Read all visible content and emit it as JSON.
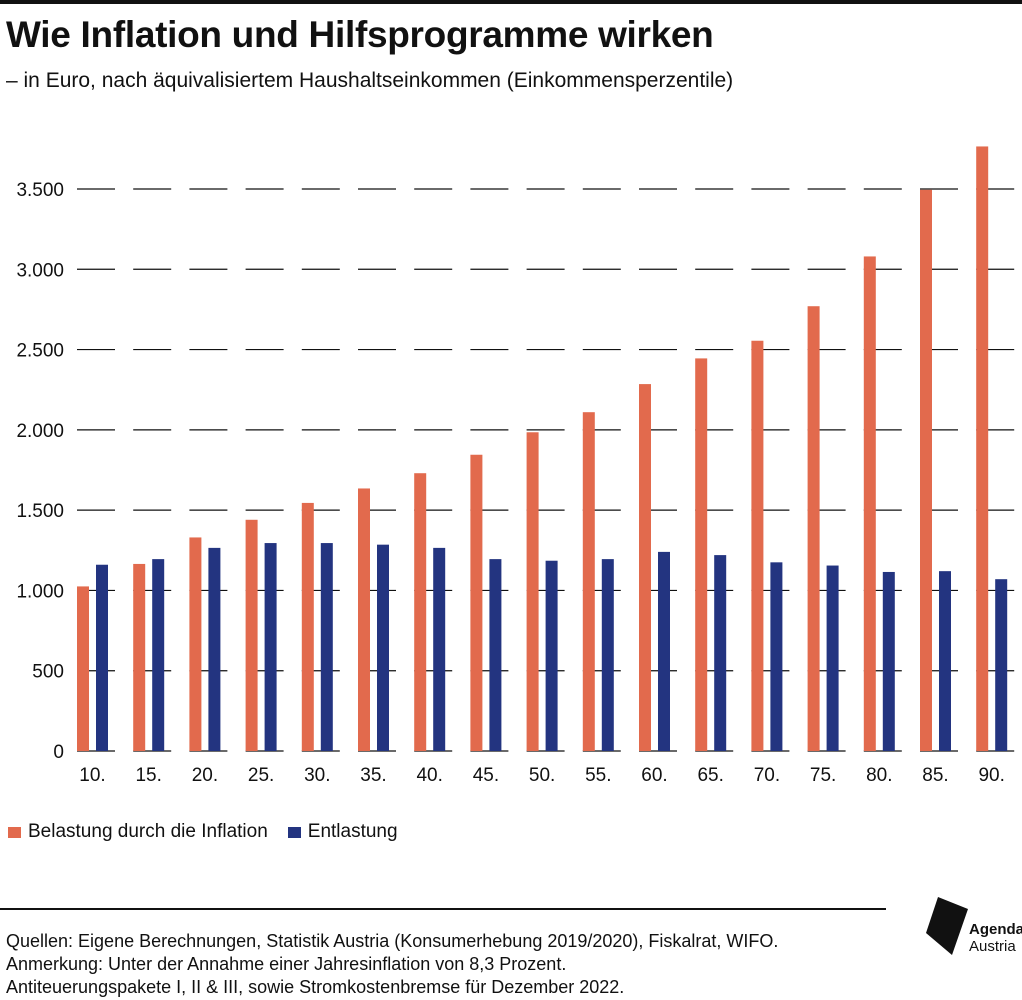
{
  "header": {
    "title": "Wie Inflation und Hilfsprogramme wirken",
    "subtitle": "– in Euro, nach äquivalisiertem Haushaltseinkommen (Einkommensperzentile)"
  },
  "chart_data": {
    "type": "bar",
    "title": "Wie Inflation und Hilfsprogramme wirken",
    "subtitle": "– in Euro, nach äquivalisiertem Haushaltseinkommen (Einkommensperzentile)",
    "categories": [
      "10.",
      "15.",
      "20.",
      "25.",
      "30.",
      "35.",
      "40.",
      "45.",
      "50.",
      "55.",
      "60.",
      "65.",
      "70.",
      "75.",
      "80.",
      "85.",
      "90."
    ],
    "series": [
      {
        "name": "Belastung durch die Inflation",
        "color": "#e26a4d",
        "values": [
          1025,
          1165,
          1330,
          1440,
          1545,
          1635,
          1730,
          1845,
          1985,
          2110,
          2285,
          2445,
          2555,
          2770,
          3080,
          3495,
          3765
        ]
      },
      {
        "name": "Entlastung",
        "color": "#233480",
        "values": [
          1160,
          1195,
          1265,
          1295,
          1295,
          1285,
          1265,
          1195,
          1185,
          1195,
          1240,
          1220,
          1175,
          1155,
          1115,
          1120,
          1070
        ]
      }
    ],
    "y_ticks": [
      0,
      500,
      1000,
      1500,
      2000,
      2500,
      3000,
      3500
    ],
    "y_tick_labels": [
      "0",
      "500",
      "1.000",
      "1.500",
      "2.000",
      "2.500",
      "3.000",
      "3.500"
    ],
    "ylim": [
      0,
      3765
    ],
    "xlabel": "",
    "ylabel": "",
    "grid": true,
    "legend_position": "bottom-left"
  },
  "legend": {
    "items": [
      {
        "label": "Belastung durch die Inflation",
        "color": "#e26a4d"
      },
      {
        "label": "Entlastung",
        "color": "#233480"
      }
    ]
  },
  "footer": {
    "sources": "Quellen: Eigene Berechnungen, Statistik Austria (Konsumerhebung 2019/2020), Fiskalrat, WIFO.",
    "note_line1": "Anmerkung: Unter der Annahme einer Jahresinflation von 8,3 Prozent.",
    "note_line2": "Antiteuerungspakete I, II & III, sowie Stromkostenbremse für Dezember 2022."
  },
  "logo": {
    "line1": "Agenda",
    "line2": "Austria"
  }
}
